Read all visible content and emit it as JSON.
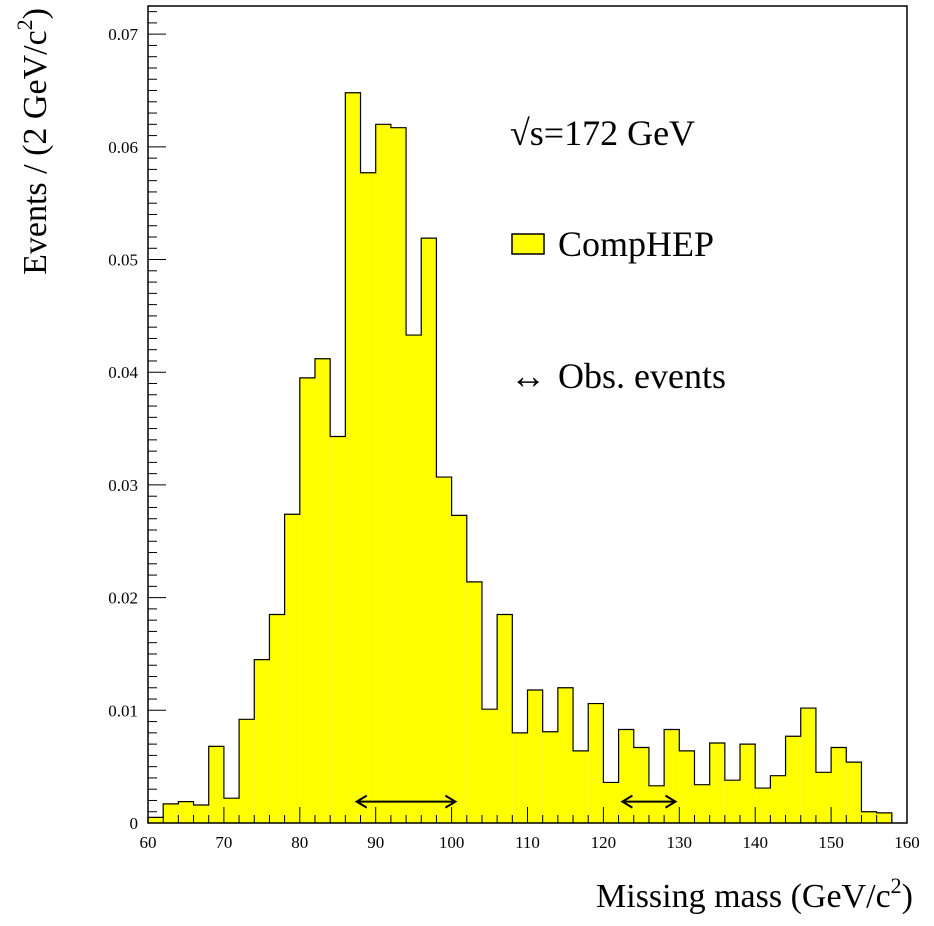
{
  "chart_data": {
    "type": "bar",
    "bin_width": 2,
    "x_start": 60,
    "xlim": [
      60,
      160
    ],
    "ylim": [
      0,
      0.0725
    ],
    "xticks": [
      60,
      70,
      80,
      90,
      100,
      110,
      120,
      130,
      140,
      150,
      160
    ],
    "xtick_labels": [
      "60",
      "70",
      "80",
      "90",
      "100",
      "110",
      "120",
      "130",
      "140",
      "150",
      "160"
    ],
    "yticks": [
      0,
      0.01,
      0.02,
      0.03,
      0.04,
      0.05,
      0.06,
      0.07
    ],
    "ytick_labels": [
      "0",
      "0.01",
      "0.02",
      "0.03",
      "0.04",
      "0.05",
      "0.06",
      "0.07"
    ],
    "values": [
      0.0005,
      0.0017,
      0.0019,
      0.0016,
      0.0068,
      0.0022,
      0.0092,
      0.0145,
      0.0185,
      0.0274,
      0.0395,
      0.0412,
      0.0343,
      0.0648,
      0.0577,
      0.062,
      0.0617,
      0.0433,
      0.0519,
      0.0307,
      0.0273,
      0.0214,
      0.0101,
      0.0185,
      0.008,
      0.0118,
      0.0081,
      0.012,
      0.0064,
      0.0106,
      0.0036,
      0.0083,
      0.0067,
      0.0033,
      0.0083,
      0.0064,
      0.0034,
      0.0071,
      0.0038,
      0.007,
      0.0031,
      0.0042,
      0.0077,
      0.0102,
      0.0045,
      0.0067,
      0.0054,
      0.001,
      0.0009
    ],
    "xlabel_main": "Missing mass (GeV/c",
    "xlabel_sup": "2",
    "xlabel_end": ")",
    "ylabel_main": "Events / (2 GeV/c",
    "ylabel_sup": "2",
    "ylabel_end": ")",
    "fill_color": "#ffff00",
    "grid": false,
    "legend_position": "top-right",
    "legend": {
      "energy_label": "√s=172 GeV",
      "series_name": "CompHEP",
      "marker_symbol": "↔",
      "marker_label": "Obs. events"
    },
    "observed_events": [
      {
        "x_from": 87.5,
        "x_to": 100.5,
        "y": 0.0019
      },
      {
        "x_from": 122.5,
        "x_to": 129.5,
        "y": 0.0019
      }
    ]
  }
}
